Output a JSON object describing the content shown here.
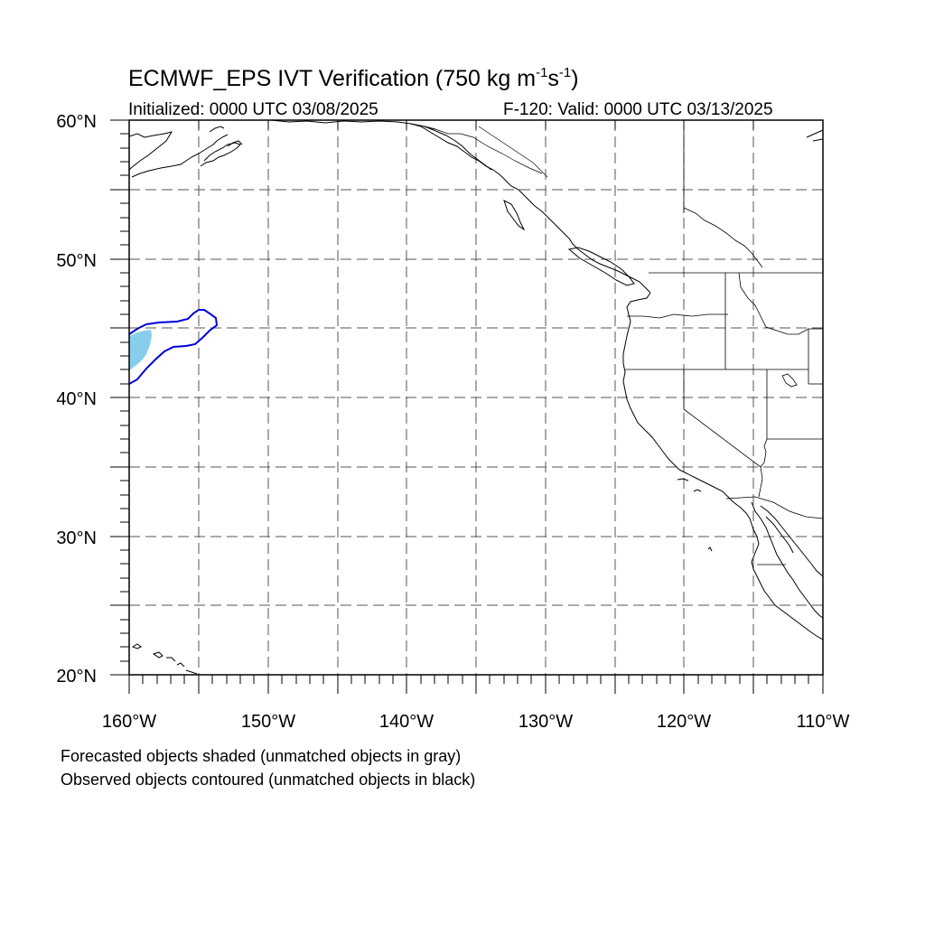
{
  "title": {
    "prefix": "ECMWF_EPS IVT Verification (750 kg m",
    "exp1": "-1",
    "mid": "s",
    "exp2": "-1",
    "suffix": ")"
  },
  "initialized": "Initialized: 0000 UTC 03/08/2025",
  "valid": "F-120: Valid: 0000 UTC 03/13/2025",
  "notes": [
    "Forecasted objects shaded (unmatched objects in gray)",
    "Observed objects contoured (unmatched objects in black)"
  ],
  "map": {
    "lon_range": [
      -160,
      -110
    ],
    "lat_range": [
      20,
      60
    ],
    "grid_lines": "dashed",
    "lat_labels": [
      "20°N",
      "30°N",
      "40°N",
      "50°N",
      "60°N"
    ],
    "lon_labels": [
      "160°W",
      "150°W",
      "140°W",
      "130°W",
      "120°W",
      "110°W"
    ],
    "colors": {
      "forecast_fill": "#87ceeb",
      "observed_contour": "#0000dd",
      "coastline": "#000000",
      "grid": "#555555"
    }
  }
}
